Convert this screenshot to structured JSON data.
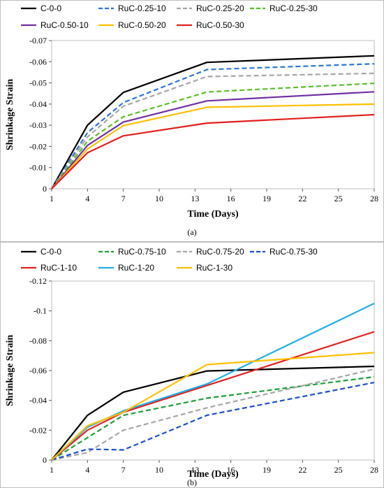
{
  "chart_data": [
    {
      "type": "line",
      "caption": "(a)",
      "xlabel": "Time (Days)",
      "ylabel": "Shrinkage Strain",
      "x": [
        1,
        4,
        7,
        14,
        28
      ],
      "x_tick_labels": [
        "1",
        "4",
        "7",
        "10",
        "13",
        "16",
        "19",
        "22",
        "25",
        "28"
      ],
      "x_ticks": [
        1,
        4,
        7,
        10,
        13,
        16,
        19,
        22,
        25,
        28
      ],
      "ylim": [
        0,
        -0.07
      ],
      "y_ticks": [
        0,
        -0.01,
        -0.02,
        -0.03,
        -0.04,
        -0.05,
        -0.06,
        -0.07
      ],
      "y_tick_labels": [
        "0",
        "-0.01",
        "-0.02",
        "-0.03",
        "-0.04",
        "-0.05",
        "-0.06",
        "-0.07"
      ],
      "grid": false,
      "legend_position": "top",
      "series": [
        {
          "name": "C-0-0",
          "color": "#000000",
          "dash": "solid",
          "values": [
            0,
            -0.03,
            -0.0455,
            -0.0597,
            -0.0628
          ]
        },
        {
          "name": "RuC-0.25-10",
          "color": "#2e75d6",
          "dash": "dashed",
          "values": [
            0,
            -0.0265,
            -0.0407,
            -0.0563,
            -0.059
          ]
        },
        {
          "name": "RuC-0.25-20",
          "color": "#a6a6a6",
          "dash": "dashed",
          "values": [
            0,
            -0.0245,
            -0.039,
            -0.053,
            -0.0545
          ]
        },
        {
          "name": "RuC-0.25-30",
          "color": "#5bbf2a",
          "dash": "dashed",
          "values": [
            0,
            -0.0225,
            -0.034,
            -0.0457,
            -0.0498
          ]
        },
        {
          "name": "RuC-0.50-10",
          "color": "#7030a0",
          "dash": "solid",
          "values": [
            0,
            -0.0205,
            -0.0315,
            -0.0415,
            -0.0458
          ]
        },
        {
          "name": "RuC-0.50-20",
          "color": "#ffc000",
          "dash": "solid",
          "values": [
            0,
            -0.0188,
            -0.0298,
            -0.0385,
            -0.04
          ]
        },
        {
          "name": "RuC-0.50-30",
          "color": "#e02020",
          "dash": "solid",
          "values": [
            0,
            -0.017,
            -0.025,
            -0.031,
            -0.035
          ]
        }
      ]
    },
    {
      "type": "line",
      "caption": "(b)",
      "xlabel": "Time (Days)",
      "ylabel": "Shrinkage Strain",
      "x": [
        1,
        4,
        7,
        14,
        28
      ],
      "x_tick_labels": [
        "1",
        "4",
        "7",
        "10",
        "13",
        "16",
        "19",
        "22",
        "25",
        "28"
      ],
      "x_ticks": [
        1,
        4,
        7,
        10,
        13,
        16,
        19,
        22,
        25,
        28
      ],
      "ylim": [
        0,
        -0.12
      ],
      "y_ticks": [
        0,
        -0.02,
        -0.04,
        -0.06,
        -0.08,
        -0.1,
        -0.12
      ],
      "y_tick_labels": [
        "0",
        "-0.02",
        "-0.04",
        "-0.06",
        "-0.08",
        "-0.1",
        "-0.12"
      ],
      "grid": false,
      "legend_position": "top",
      "series": [
        {
          "name": "C-0-0",
          "color": "#000000",
          "dash": "solid",
          "values": [
            0,
            -0.03,
            -0.0455,
            -0.0597,
            -0.0628
          ]
        },
        {
          "name": "RuC-0.75-10",
          "color": "#1e9e3a",
          "dash": "dashed",
          "values": [
            0,
            -0.015,
            -0.03,
            -0.0415,
            -0.0558
          ]
        },
        {
          "name": "RuC-0.75-20",
          "color": "#a6a6a6",
          "dash": "dashed",
          "values": [
            0,
            -0.005,
            -0.02,
            -0.035,
            -0.061
          ]
        },
        {
          "name": "RuC-0.75-30",
          "color": "#1f4fc4",
          "dash": "dashed",
          "values": [
            0,
            -0.0073,
            -0.0068,
            -0.03,
            -0.052
          ]
        },
        {
          "name": "RuC-1-10",
          "color": "#e02020",
          "dash": "solid",
          "values": [
            0,
            -0.02,
            -0.032,
            -0.05,
            -0.086
          ]
        },
        {
          "name": "RuC-1-20",
          "color": "#22aee6",
          "dash": "solid",
          "values": [
            0,
            -0.022,
            -0.033,
            -0.051,
            -0.105
          ]
        },
        {
          "name": "RuC-1-30",
          "color": "#ffc000",
          "dash": "solid",
          "values": [
            0,
            -0.023,
            -0.032,
            -0.064,
            -0.072
          ]
        }
      ]
    }
  ]
}
